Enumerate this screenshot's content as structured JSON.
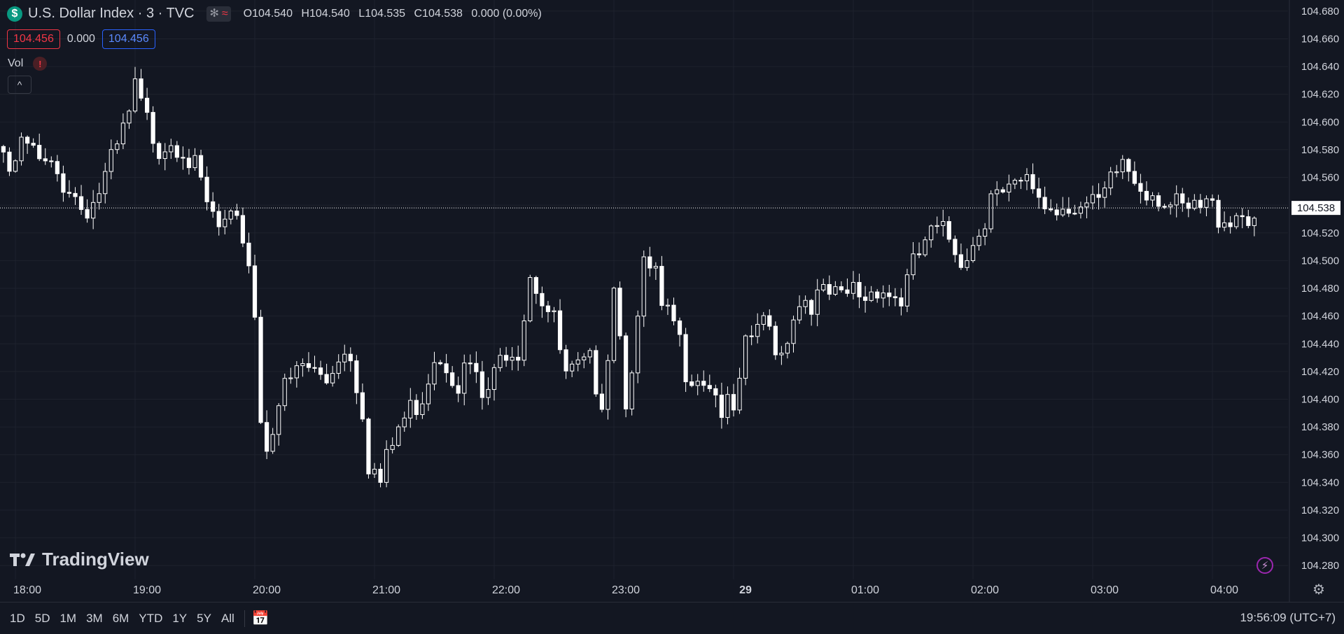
{
  "header": {
    "symbol_icon": "$",
    "title": "U.S. Dollar Index · 3 · TVC",
    "pill_icons": [
      "snowflake-icon",
      "waves-icon"
    ],
    "ohlc": {
      "o_label": "O",
      "o": "104.540",
      "h_label": "H",
      "h": "104.540",
      "l_label": "L",
      "l": "104.535",
      "c_label": "C",
      "c": "104.538",
      "change": "0.000 (0.00%)"
    },
    "bid": "104.456",
    "spread": "0.000",
    "ask": "104.456",
    "vol_label": "Vol",
    "warning": "!",
    "collapse": "^"
  },
  "watermark": "TradingView",
  "bottom": {
    "ranges": [
      "1D",
      "5D",
      "1M",
      "3M",
      "6M",
      "YTD",
      "1Y",
      "5Y",
      "All"
    ],
    "clock": "19:56:09 (UTC+7)"
  },
  "colors": {
    "background": "#131722",
    "grid": "#1e222d",
    "candle": "#ffffff",
    "axis_text": "#d1d4dc"
  },
  "chart_data": {
    "type": "candlestick",
    "ylim": [
      104.27,
      104.688
    ],
    "y_ticks": [
      "104.680",
      "104.660",
      "104.640",
      "104.620",
      "104.600",
      "104.580",
      "104.560",
      "104.540",
      "104.520",
      "104.500",
      "104.480",
      "104.460",
      "104.440",
      "104.420",
      "104.400",
      "104.380",
      "104.360",
      "104.340",
      "104.320",
      "104.300",
      "104.280"
    ],
    "x_ticks": [
      {
        "label": "18:00",
        "bar": 0
      },
      {
        "label": "19:00",
        "bar": 20
      },
      {
        "label": "20:00",
        "bar": 40
      },
      {
        "label": "21:00",
        "bar": 60
      },
      {
        "label": "22:00",
        "bar": 80
      },
      {
        "label": "23:00",
        "bar": 100
      },
      {
        "label": "29",
        "bar": 120
      },
      {
        "label": "01:00",
        "bar": 140
      },
      {
        "label": "02:00",
        "bar": 160
      },
      {
        "label": "03:00",
        "bar": 180
      },
      {
        "label": "04:00",
        "bar": 200
      }
    ],
    "last_price": "104.538",
    "grid": true,
    "bar_start": -2,
    "anchors": [
      [
        -2,
        104.585
      ],
      [
        0,
        104.578
      ],
      [
        2,
        104.59
      ],
      [
        4,
        104.575
      ],
      [
        6,
        104.57
      ],
      [
        9,
        104.56
      ],
      [
        11,
        104.545
      ],
      [
        13,
        104.548
      ],
      [
        15,
        104.565
      ],
      [
        17,
        104.585
      ],
      [
        19,
        104.61
      ],
      [
        20,
        104.628
      ],
      [
        22,
        104.605
      ],
      [
        24,
        104.59
      ],
      [
        26,
        104.595
      ],
      [
        28,
        104.59
      ],
      [
        30,
        104.57
      ],
      [
        32,
        104.545
      ],
      [
        34,
        104.528
      ],
      [
        36,
        104.53
      ],
      [
        38,
        104.525
      ],
      [
        39,
        104.505
      ],
      [
        40,
        104.47
      ],
      [
        41,
        104.39
      ],
      [
        42,
        104.375
      ],
      [
        44,
        104.405
      ],
      [
        46,
        104.418
      ],
      [
        48,
        104.43
      ],
      [
        50,
        104.425
      ],
      [
        52,
        104.42
      ],
      [
        54,
        104.44
      ],
      [
        56,
        104.44
      ],
      [
        58,
        104.4
      ],
      [
        59,
        104.362
      ],
      [
        61,
        104.345
      ],
      [
        62,
        104.36
      ],
      [
        64,
        104.385
      ],
      [
        66,
        104.398
      ],
      [
        68,
        104.41
      ],
      [
        70,
        104.44
      ],
      [
        72,
        104.435
      ],
      [
        74,
        104.42
      ],
      [
        76,
        104.43
      ],
      [
        78,
        104.405
      ],
      [
        80,
        104.42
      ],
      [
        82,
        104.445
      ],
      [
        84,
        104.445
      ],
      [
        85,
        104.47
      ],
      [
        86,
        104.5
      ],
      [
        88,
        104.48
      ],
      [
        90,
        104.46
      ],
      [
        92,
        104.42
      ],
      [
        94,
        104.425
      ],
      [
        96,
        104.43
      ],
      [
        98,
        104.41
      ],
      [
        99,
        104.44
      ],
      [
        100,
        104.495
      ],
      [
        102,
        104.41
      ],
      [
        104,
        104.46
      ],
      [
        105,
        104.498
      ],
      [
        107,
        104.495
      ],
      [
        108,
        104.465
      ],
      [
        110,
        104.46
      ],
      [
        112,
        104.43
      ],
      [
        114,
        104.425
      ],
      [
        116,
        104.42
      ],
      [
        118,
        104.4
      ],
      [
        120,
        104.395
      ],
      [
        121,
        104.412
      ],
      [
        122,
        104.44
      ],
      [
        124,
        104.46
      ],
      [
        126,
        104.455
      ],
      [
        128,
        104.44
      ],
      [
        130,
        104.47
      ],
      [
        132,
        104.48
      ],
      [
        134,
        104.478
      ],
      [
        136,
        104.48
      ],
      [
        138,
        104.475
      ],
      [
        140,
        104.485
      ],
      [
        142,
        104.48
      ],
      [
        144,
        104.49
      ],
      [
        146,
        104.482
      ],
      [
        148,
        104.478
      ],
      [
        149,
        104.49
      ],
      [
        151,
        104.51
      ],
      [
        152,
        104.52
      ],
      [
        154,
        104.525
      ],
      [
        156,
        104.522
      ],
      [
        158,
        104.51
      ],
      [
        160,
        104.518
      ],
      [
        162,
        104.54
      ],
      [
        163,
        104.56
      ],
      [
        165,
        104.55
      ],
      [
        167,
        104.555
      ],
      [
        169,
        104.56
      ],
      [
        171,
        104.555
      ],
      [
        172,
        104.545
      ],
      [
        174,
        104.545
      ],
      [
        176,
        104.55
      ],
      [
        178,
        104.545
      ],
      [
        180,
        104.542
      ],
      [
        182,
        104.55
      ],
      [
        184,
        104.57
      ],
      [
        185,
        104.578
      ],
      [
        187,
        104.565
      ],
      [
        189,
        104.56
      ],
      [
        191,
        104.555
      ],
      [
        193,
        104.545
      ],
      [
        195,
        104.54
      ],
      [
        197,
        104.54
      ],
      [
        199,
        104.545
      ],
      [
        201,
        104.54
      ],
      [
        203,
        104.538
      ],
      [
        205,
        104.542
      ],
      [
        207,
        104.538
      ]
    ]
  }
}
